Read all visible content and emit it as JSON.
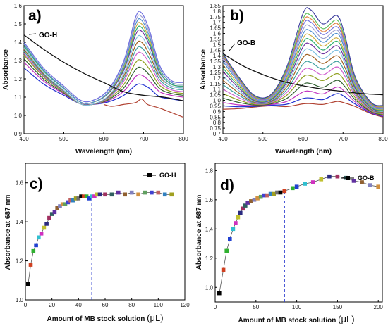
{
  "chart_data": [
    {
      "panel": "a)",
      "type": "line",
      "xlabel": "Wavelength (nm)",
      "ylabel": "Absorbance",
      "xlim": [
        400,
        800
      ],
      "ylim": [
        0.9,
        1.6
      ],
      "xticks": [
        400,
        500,
        600,
        700,
        800
      ],
      "yticks": [
        0.9,
        1.0,
        1.1,
        1.2,
        1.3,
        1.4,
        1.5,
        1.6
      ],
      "annotation": "GO-H",
      "reference_series": {
        "label": "GO-H",
        "x": [
          400,
          450,
          500,
          550,
          600,
          650,
          700,
          750,
          800
        ],
        "y": [
          1.44,
          1.36,
          1.29,
          1.23,
          1.18,
          1.13,
          1.11,
          1.1,
          1.08
        ]
      },
      "series_colors": [
        "#b04030",
        "#2030d0",
        "#c030c0",
        "#306030",
        "#90a020",
        "#d060d0",
        "#40a0a0",
        "#a06020",
        "#80c0e0",
        "#7030a0",
        "#30b070",
        "#d0b040",
        "#5090d0",
        "#a0a0d0",
        "#7070e0"
      ],
      "peak_x": 695,
      "peak_values": [
        1.09,
        1.17,
        1.22,
        1.26,
        1.3,
        1.34,
        1.37,
        1.4,
        1.43,
        1.46,
        1.48,
        1.5,
        1.52,
        1.54,
        1.56
      ],
      "start_values": [
        null,
        1.26,
        1.29,
        1.31,
        1.33,
        1.34,
        1.35,
        1.36,
        1.37,
        1.38,
        1.38,
        1.39,
        1.39,
        1.4,
        1.4
      ],
      "min_values": [
        1.05,
        1.06,
        1.06,
        1.06,
        1.06,
        1.06,
        1.06,
        1.06,
        1.06,
        1.07,
        1.07,
        1.07,
        1.07,
        1.08,
        1.08
      ],
      "end_values": [
        0.99,
        1.08,
        1.1,
        1.11,
        1.12,
        1.13,
        1.14,
        1.15,
        1.15,
        1.16,
        1.16,
        1.17,
        1.17,
        1.18,
        1.18
      ]
    },
    {
      "panel": "b)",
      "type": "line",
      "xlabel": "Wavelength (nm)",
      "ylabel": "Absorbance",
      "xlim": [
        400,
        800
      ],
      "ylim": [
        0.7,
        1.85
      ],
      "xticks": [
        400,
        500,
        600,
        700,
        800
      ],
      "yticks": [
        0.7,
        0.75,
        0.8,
        0.85,
        0.9,
        0.95,
        1.0,
        1.05,
        1.1,
        1.15,
        1.2,
        1.25,
        1.3,
        1.35,
        1.4,
        1.45,
        1.5,
        1.55,
        1.6,
        1.65,
        1.7,
        1.75,
        1.8,
        1.85
      ],
      "ytick_labels": [
        "0.7",
        "0.75",
        "0.8",
        "0.85",
        "0.9",
        "0.95",
        "1.0",
        "1.05",
        "1.1",
        "1.15",
        "1.2",
        "1.25",
        "1.3",
        "1.35",
        "1.4",
        "1.45",
        "1.5",
        "1.55",
        "1.6",
        "1.65",
        "1.7",
        "1.75",
        "1.8",
        "1.85"
      ],
      "annotation": "GO-B",
      "reference_series": {
        "label": "GO-B",
        "x": [
          400,
          450,
          500,
          550,
          600,
          650,
          700,
          750,
          800
        ],
        "y": [
          1.42,
          1.31,
          1.23,
          1.17,
          1.13,
          1.1,
          1.08,
          1.06,
          1.05
        ]
      },
      "series_colors": [
        "#b04030",
        "#2030d0",
        "#c030c0",
        "#306030",
        "#90a020",
        "#d060d0",
        "#40a0a0",
        "#a06020",
        "#80c0e0",
        "#7030a0",
        "#30b070",
        "#d0b040",
        "#5090d0",
        "#a0a0d0",
        "#7070e0",
        "#e08040",
        "#60c060",
        "#4040a0"
      ],
      "peak1_x": 620,
      "peak2_x": 685,
      "peak1_values": [
        0.97,
        1.02,
        1.08,
        1.15,
        1.22,
        1.28,
        1.34,
        1.4,
        1.45,
        1.5,
        1.54,
        1.58,
        1.62,
        1.66,
        1.7,
        1.73,
        1.76,
        1.81
      ],
      "peak2_values": [
        0.99,
        1.06,
        1.12,
        1.18,
        1.24,
        1.3,
        1.35,
        1.4,
        1.45,
        1.49,
        1.53,
        1.56,
        1.6,
        1.63,
        1.66,
        1.69,
        1.72,
        1.76
      ],
      "start_values": [
        0.92,
        0.95,
        0.98,
        1.02,
        1.06,
        1.1,
        1.14,
        1.18,
        1.22,
        1.26,
        1.29,
        1.32,
        1.35,
        1.37,
        1.39,
        1.4,
        1.41,
        1.42
      ]
    },
    {
      "panel": "c)",
      "type": "scatter",
      "xlabel": "Amount of MB stock solution",
      "xlabel_unit": "(μL)",
      "ylabel": "Absorbance at 687 nm",
      "xlim": [
        0,
        120
      ],
      "ylim": [
        1.0,
        1.7
      ],
      "xticks": [
        0,
        20,
        40,
        60,
        80,
        100,
        120
      ],
      "yticks": [
        1.0,
        1.2,
        1.4,
        1.6
      ],
      "legend": "GO-H",
      "legend_position": "top-right",
      "vline_x": 50,
      "x": [
        2,
        4,
        6,
        8,
        10,
        12,
        14,
        16,
        18,
        20,
        22,
        24,
        26,
        28,
        30,
        32,
        34,
        36,
        38,
        40,
        42,
        44,
        46,
        48,
        50,
        52,
        54,
        56,
        60,
        65,
        70,
        75,
        80,
        85,
        90,
        95,
        100,
        105,
        110
      ],
      "y": [
        1.08,
        1.18,
        1.25,
        1.28,
        1.32,
        1.34,
        1.37,
        1.39,
        1.42,
        1.44,
        1.45,
        1.47,
        1.48,
        1.49,
        1.49,
        1.5,
        1.51,
        1.51,
        1.52,
        1.52,
        1.53,
        1.53,
        1.53,
        1.52,
        1.53,
        1.53,
        1.54,
        1.54,
        1.54,
        1.54,
        1.55,
        1.54,
        1.55,
        1.54,
        1.55,
        1.55,
        1.55,
        1.54,
        1.54
      ]
    },
    {
      "panel": "d)",
      "type": "scatter",
      "xlabel": "Amount of MB stock solution",
      "xlabel_unit": "(μL)",
      "ylabel": "Absorbance at 687 nm",
      "xlim": [
        0,
        205
      ],
      "ylim": [
        0.9,
        1.85
      ],
      "xticks": [
        0,
        50,
        100,
        150,
        200
      ],
      "yticks": [
        1.0,
        1.2,
        1.4,
        1.6,
        1.8
      ],
      "legend": "GO-B",
      "legend_position": "top-right",
      "vline_x": 85,
      "x": [
        5,
        10,
        14,
        18,
        22,
        25,
        28,
        31,
        34,
        37,
        40,
        44,
        48,
        52,
        56,
        60,
        64,
        68,
        72,
        76,
        80,
        85,
        95,
        100,
        110,
        120,
        130,
        140,
        150,
        160,
        170,
        180,
        190,
        200
      ],
      "y": [
        0.96,
        1.12,
        1.25,
        1.33,
        1.4,
        1.44,
        1.48,
        1.51,
        1.54,
        1.56,
        1.58,
        1.59,
        1.6,
        1.61,
        1.62,
        1.63,
        1.63,
        1.64,
        1.64,
        1.65,
        1.65,
        1.66,
        1.68,
        1.69,
        1.71,
        1.72,
        1.74,
        1.76,
        1.76,
        1.75,
        1.73,
        1.72,
        1.7,
        1.69
      ]
    }
  ]
}
